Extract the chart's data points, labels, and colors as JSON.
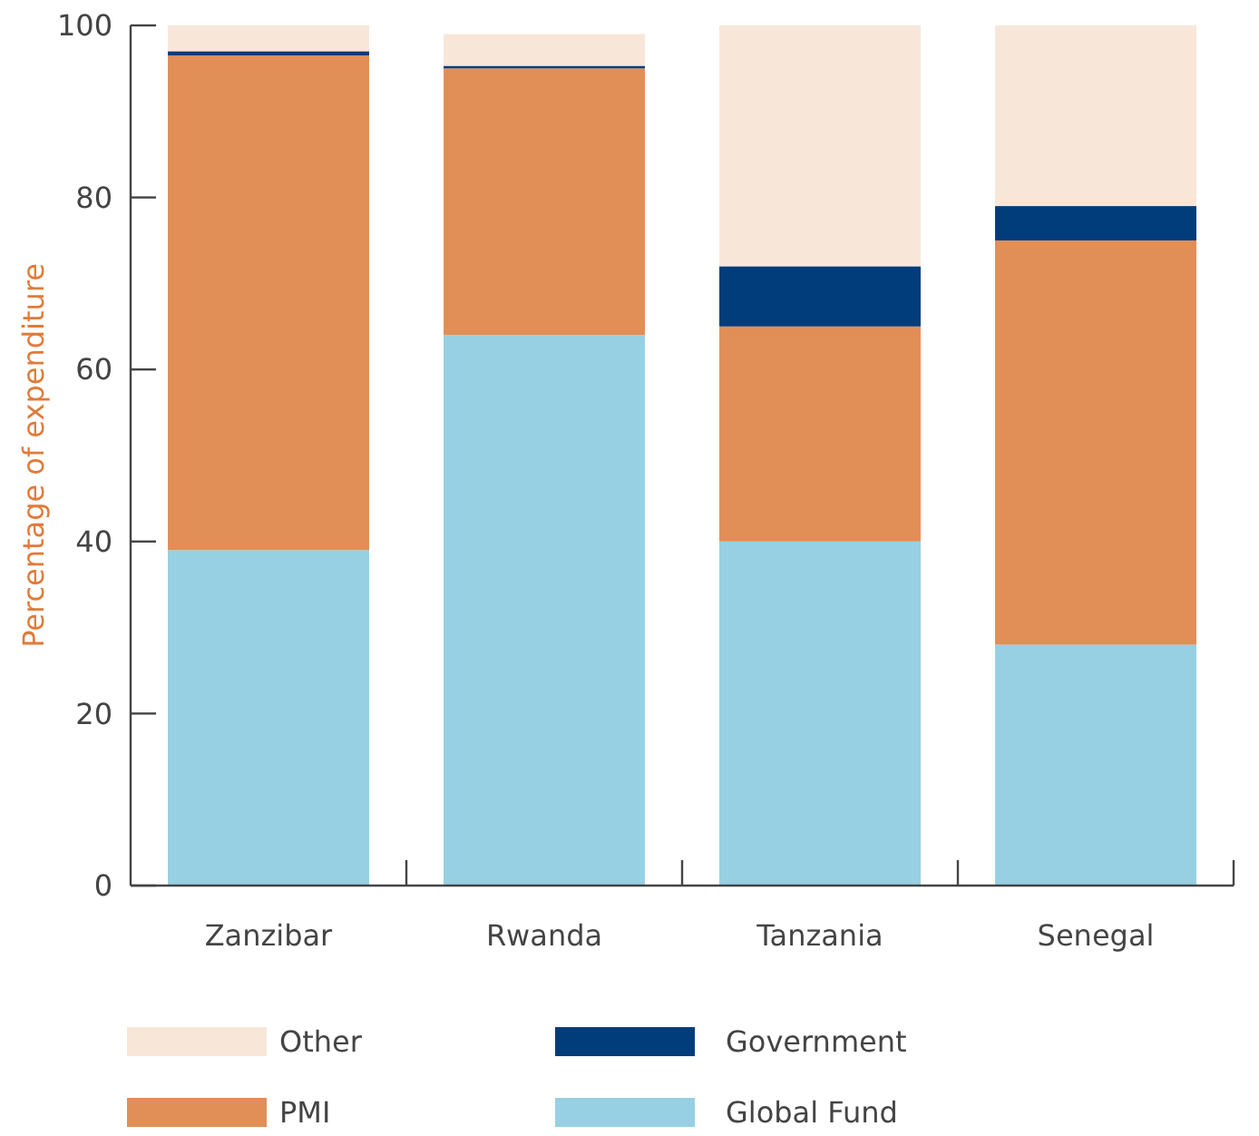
{
  "chart_data": {
    "type": "bar",
    "stacked": true,
    "ylabel": "Percentage of expenditure",
    "categories": [
      "Zanzibar",
      "Rwanda",
      "Tanzania",
      "Senegal"
    ],
    "series": [
      {
        "name": "Global Fund",
        "color": "#97d0e3",
        "values": [
          39,
          64,
          40,
          28
        ]
      },
      {
        "name": "PMI",
        "color": "#e18e57",
        "values": [
          57.5,
          31,
          25,
          47
        ]
      },
      {
        "name": "Government",
        "color": "#013c7b",
        "values": [
          0.5,
          0.3,
          7,
          4
        ]
      },
      {
        "name": "Other",
        "color": "#f8e7d9",
        "values": [
          3,
          3.7,
          28,
          21
        ]
      }
    ],
    "ylim": [
      0,
      100
    ],
    "yticks": [
      0,
      20,
      40,
      60,
      80,
      100
    ],
    "grid": false,
    "legend": "bottom"
  }
}
